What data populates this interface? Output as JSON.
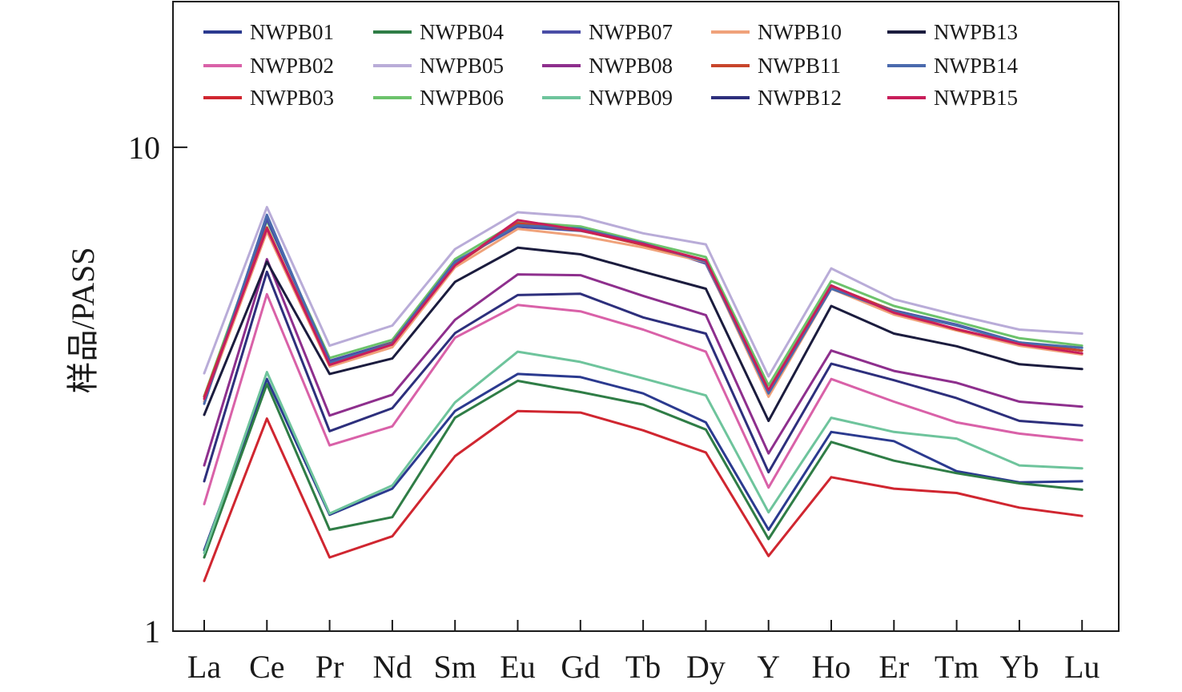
{
  "chart_data": {
    "type": "line",
    "title": "",
    "xlabel": "",
    "ylabel": "样品/PASS",
    "y_scale": "log",
    "ylim": [
      1,
      20
    ],
    "y_ticks": [
      {
        "value": 1,
        "label": "1"
      },
      {
        "value": 10,
        "label": "10"
      }
    ],
    "categories": [
      "La",
      "Ce",
      "Pr",
      "Nd",
      "Sm",
      "Eu",
      "Gd",
      "Tb",
      "Dy",
      "Y",
      "Ho",
      "Er",
      "Tm",
      "Yb",
      "Lu"
    ],
    "legend_position": "top",
    "grid": false,
    "series": [
      {
        "name": "NWPB01",
        "color": "#2b3a8f",
        "values": [
          1.47,
          3.32,
          1.74,
          1.97,
          2.85,
          3.4,
          3.35,
          3.1,
          2.7,
          1.62,
          2.58,
          2.47,
          2.14,
          2.03,
          2.04
        ]
      },
      {
        "name": "NWPB02",
        "color": "#d961a8",
        "values": [
          1.83,
          4.97,
          2.42,
          2.65,
          4.04,
          4.72,
          4.58,
          4.2,
          3.78,
          1.98,
          3.32,
          2.98,
          2.7,
          2.56,
          2.48
        ]
      },
      {
        "name": "NWPB03",
        "color": "#d02630",
        "values": [
          1.27,
          2.75,
          1.42,
          1.57,
          2.3,
          2.85,
          2.83,
          2.6,
          2.34,
          1.43,
          2.08,
          1.97,
          1.93,
          1.8,
          1.73
        ]
      },
      {
        "name": "NWPB04",
        "color": "#2f7d46",
        "values": [
          1.42,
          3.24,
          1.62,
          1.72,
          2.76,
          3.29,
          3.12,
          2.94,
          2.61,
          1.55,
          2.46,
          2.25,
          2.12,
          2.02,
          1.96
        ]
      },
      {
        "name": "NWPB05",
        "color": "#b9acd8",
        "values": [
          3.41,
          7.52,
          3.89,
          4.28,
          6.16,
          7.34,
          7.18,
          6.64,
          6.3,
          3.36,
          5.62,
          4.85,
          4.5,
          4.2,
          4.12
        ]
      },
      {
        "name": "NWPB06",
        "color": "#6cc26b",
        "values": [
          3.06,
          7.05,
          3.67,
          4.0,
          5.87,
          7.01,
          6.86,
          6.37,
          5.93,
          3.22,
          5.29,
          4.7,
          4.36,
          4.03,
          3.89
        ]
      },
      {
        "name": "NWPB07",
        "color": "#4a4ea6",
        "values": [
          2.98,
          7.1,
          3.62,
          3.95,
          5.8,
          6.85,
          6.72,
          6.33,
          5.75,
          3.12,
          5.12,
          4.6,
          4.3,
          3.95,
          3.8
        ]
      },
      {
        "name": "NWPB08",
        "color": "#8e2f8d",
        "values": [
          2.2,
          5.87,
          2.79,
          3.08,
          4.4,
          5.46,
          5.44,
          4.93,
          4.5,
          2.33,
          3.8,
          3.45,
          3.26,
          2.98,
          2.91
        ]
      },
      {
        "name": "NWPB09",
        "color": "#6ec49c",
        "values": [
          1.45,
          3.43,
          1.75,
          2.0,
          2.97,
          3.78,
          3.6,
          3.33,
          3.07,
          1.76,
          2.76,
          2.58,
          2.5,
          2.2,
          2.17
        ]
      },
      {
        "name": "NWPB10",
        "color": "#f0a27a",
        "values": [
          2.98,
          6.69,
          3.52,
          3.86,
          5.65,
          6.78,
          6.56,
          6.21,
          5.79,
          3.05,
          5.1,
          4.51,
          4.18,
          3.89,
          3.73
        ]
      },
      {
        "name": "NWPB11",
        "color": "#c8452b",
        "values": [
          3.05,
          6.83,
          3.56,
          3.94,
          5.71,
          6.97,
          6.73,
          6.28,
          5.83,
          3.12,
          5.17,
          4.59,
          4.2,
          3.94,
          3.8
        ]
      },
      {
        "name": "NWPB12",
        "color": "#2d2f7c",
        "values": [
          2.04,
          5.53,
          2.59,
          2.89,
          4.13,
          4.95,
          4.98,
          4.45,
          4.12,
          2.13,
          3.57,
          3.3,
          3.03,
          2.72,
          2.66
        ]
      },
      {
        "name": "NWPB13",
        "color": "#1b1c3e",
        "values": [
          2.8,
          5.8,
          3.4,
          3.66,
          5.27,
          6.2,
          6.01,
          5.53,
          5.1,
          2.72,
          4.7,
          4.12,
          3.88,
          3.56,
          3.48
        ]
      },
      {
        "name": "NWPB14",
        "color": "#4a6aad",
        "values": [
          2.95,
          7.25,
          3.58,
          3.93,
          5.78,
          6.9,
          6.79,
          6.33,
          5.8,
          3.1,
          5.1,
          4.58,
          4.28,
          3.95,
          3.85
        ]
      },
      {
        "name": "NWPB15",
        "color": "#c81e5a",
        "values": [
          3.02,
          6.79,
          3.55,
          3.91,
          5.7,
          7.07,
          6.74,
          6.31,
          5.84,
          3.15,
          5.18,
          4.55,
          4.21,
          3.92,
          3.75
        ]
      }
    ]
  }
}
